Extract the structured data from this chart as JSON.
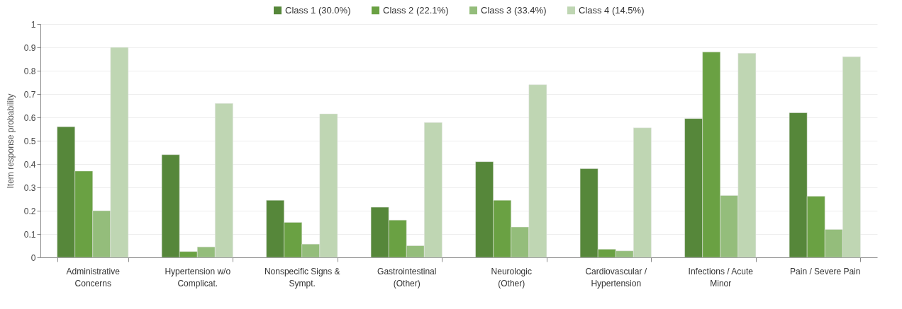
{
  "chart_data": {
    "type": "bar",
    "ylabel": "Item response probability",
    "categories": [
      "Administrative Concerns",
      "Hypertension w/o Complicat.",
      "Nonspecific Signs & Sympt.",
      "Gastrointestinal (Other)",
      "Neurologic (Other)",
      "Cardiovascular / Hypertension",
      "Infections / Acute Minor",
      "Pain / Severe Pain"
    ],
    "series": [
      {
        "name": "Class 1 (30.0%)",
        "color": "#56873a",
        "values": [
          0.56,
          0.44,
          0.245,
          0.215,
          0.41,
          0.38,
          0.595,
          0.62
        ]
      },
      {
        "name": "Class 2 (22.1%)",
        "color": "#6aa143",
        "values": [
          0.37,
          0.025,
          0.15,
          0.16,
          0.245,
          0.035,
          0.88,
          0.262
        ]
      },
      {
        "name": "Class 3 (33.4%)",
        "color": "#94bd7b",
        "values": [
          0.2,
          0.045,
          0.057,
          0.05,
          0.13,
          0.028,
          0.265,
          0.12
        ]
      },
      {
        "name": "Class 4 (14.5%)",
        "color": "#bfd6b3",
        "values": [
          0.9,
          0.66,
          0.615,
          0.578,
          0.74,
          0.555,
          0.875,
          0.86
        ]
      }
    ],
    "ylim": [
      0,
      1
    ],
    "yticks": [
      0,
      0.1,
      0.2,
      0.3,
      0.4,
      0.5,
      0.6,
      0.7,
      0.8,
      0.9,
      1
    ],
    "grid": "y",
    "legend": "top"
  }
}
